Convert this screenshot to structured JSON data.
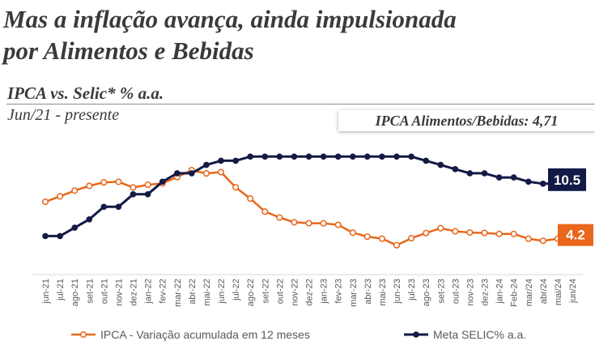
{
  "headline": "Mas a inflação avança, ainda impulsionada\npor Alimentos e Bebidas",
  "subtitle": "IPCA vs. Selic* % a.a.",
  "period": "Jun/21 - presente",
  "callout": "IPCA Alimentos/Bebidas: 4,71",
  "colors": {
    "ipca": "#e8671b",
    "selic": "#131a45",
    "text": "#3a3a3a"
  },
  "chart_data": {
    "type": "line",
    "categories": [
      "jun-21",
      "jul-21",
      "ago-21",
      "set-21",
      "out-21",
      "nov-21",
      "dez-21",
      "jan-22",
      "fev-22",
      "mar-22",
      "abr-22",
      "mai-22",
      "jun-22",
      "jul-22",
      "ago-22",
      "set-22",
      "out-22",
      "nov-22",
      "dez-22",
      "jan-23",
      "fev-23",
      "mar-23",
      "abr-23",
      "mai-23",
      "jun-23",
      "jul-23",
      "ago-23",
      "set-23",
      "out-23",
      "nov-23",
      "dez-23",
      "jan-24",
      "Feb-24",
      "mar/24",
      "abr/24",
      "mai/24",
      "jun/24"
    ],
    "ylim": [
      -2,
      16
    ],
    "series": [
      {
        "name": "IPCA - Variação acumulada em 12 meses",
        "values": [
          8.35,
          8.99,
          9.68,
          10.25,
          10.67,
          10.74,
          10.06,
          10.38,
          10.54,
          11.3,
          12.13,
          11.73,
          11.89,
          10.07,
          8.73,
          7.17,
          6.47,
          5.9,
          5.79,
          5.77,
          5.6,
          4.65,
          4.18,
          3.94,
          3.16,
          3.99,
          4.61,
          5.19,
          4.82,
          4.68,
          4.62,
          4.51,
          4.5,
          3.93,
          3.69,
          3.93,
          4.23
        ],
        "end_label": "4.2"
      },
      {
        "name": "Meta SELIC% a.a.",
        "values": [
          4.25,
          4.25,
          5.25,
          6.25,
          7.75,
          7.75,
          9.25,
          9.25,
          10.75,
          11.75,
          11.75,
          12.75,
          13.25,
          13.25,
          13.75,
          13.75,
          13.75,
          13.75,
          13.75,
          13.75,
          13.75,
          13.75,
          13.75,
          13.75,
          13.75,
          13.75,
          13.25,
          12.75,
          12.25,
          11.75,
          11.75,
          11.25,
          11.25,
          10.75,
          10.5,
          10.5,
          10.5
        ],
        "end_label": "10.5"
      }
    ]
  }
}
